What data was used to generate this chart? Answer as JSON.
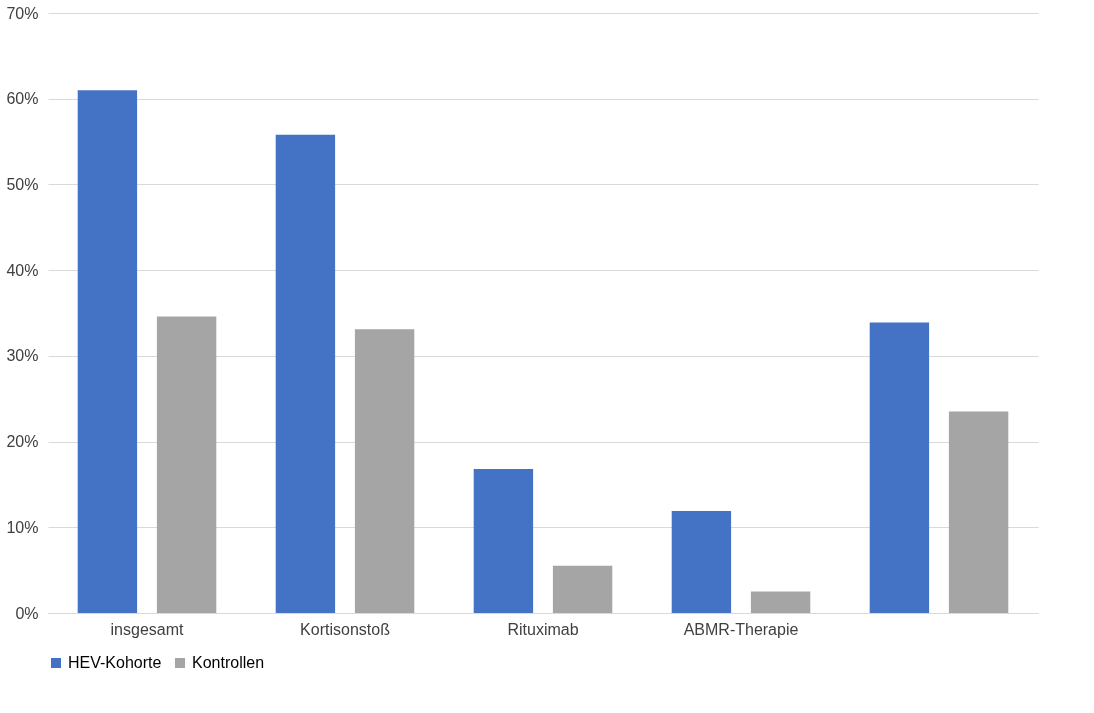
{
  "chart_data": {
    "type": "bar",
    "categories": [
      "insgesamt",
      "Kortisonstoß",
      "Rituximab",
      "ABMR-Therapie",
      null
    ],
    "series": [
      {
        "name": "HEV-Kohorte",
        "color": "#4472c4",
        "values": [
          61.0,
          55.8,
          16.8,
          11.9,
          33.9
        ]
      },
      {
        "name": "Kontrollen",
        "color": "#a5a5a5",
        "values": [
          34.6,
          33.1,
          5.5,
          2.5,
          23.5
        ]
      }
    ],
    "ylim": [
      0,
      70
    ],
    "yticks": [
      {
        "value": 0,
        "label": "0%"
      },
      {
        "value": 10,
        "label": "10%"
      },
      {
        "value": 20,
        "label": "20%"
      },
      {
        "value": 30,
        "label": "30%"
      },
      {
        "value": 40,
        "label": "40%"
      },
      {
        "value": 50,
        "label": "50%"
      },
      {
        "value": 60,
        "label": "60%"
      },
      {
        "value": 70,
        "label": "70%"
      }
    ],
    "grid": "y",
    "legend": "bottom"
  }
}
